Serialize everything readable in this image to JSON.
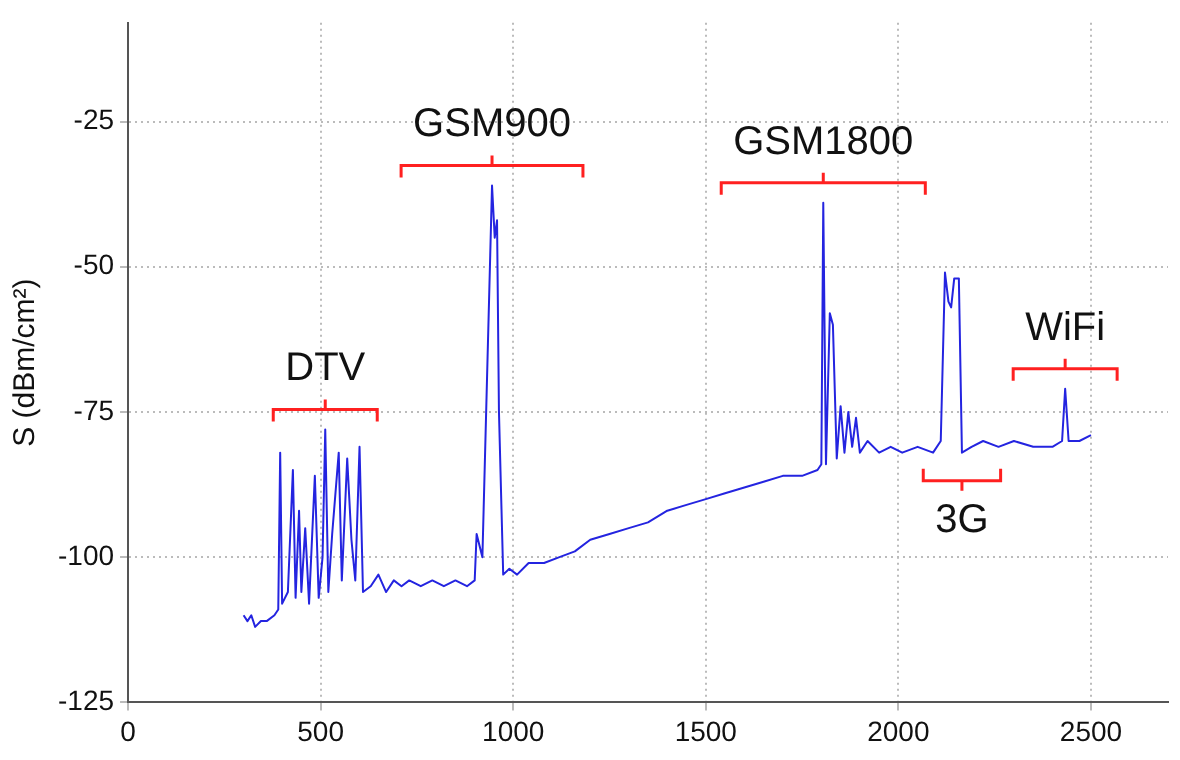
{
  "chart_data": {
    "type": "line",
    "ylabel": "S (dBm/cm²)",
    "xlim": [
      0,
      2700
    ],
    "xticks": [
      0,
      500,
      1000,
      1500,
      2000,
      2500
    ],
    "ylim": [
      -125,
      -8
    ],
    "yticks": [
      -125,
      -100,
      -75,
      -50,
      -25
    ],
    "grid": true,
    "legend": false,
    "marker": "none",
    "x": [
      300,
      310,
      320,
      330,
      345,
      360,
      380,
      390,
      395,
      400,
      415,
      428,
      435,
      444,
      450,
      460,
      470,
      485,
      495,
      505,
      512,
      520,
      530,
      547,
      555,
      569,
      580,
      590,
      601,
      610,
      630,
      650,
      670,
      690,
      710,
      730,
      760,
      790,
      820,
      850,
      880,
      900,
      905,
      920,
      945,
      952,
      958,
      963,
      974,
      990,
      1010,
      1040,
      1080,
      1120,
      1160,
      1200,
      1250,
      1300,
      1350,
      1400,
      1450,
      1500,
      1550,
      1600,
      1650,
      1700,
      1750,
      1790,
      1800,
      1805,
      1812,
      1822,
      1830,
      1840,
      1850,
      1860,
      1870,
      1880,
      1890,
      1900,
      1920,
      1950,
      1980,
      2010,
      2050,
      2090,
      2110,
      2121,
      2130,
      2137,
      2145,
      2157,
      2165,
      2190,
      2220,
      2260,
      2300,
      2350,
      2400,
      2425,
      2433,
      2442,
      2470,
      2500
    ],
    "series": [
      {
        "color": "#2424e0",
        "values": [
          -110,
          -111,
          -110,
          -112,
          -111,
          -111,
          -110,
          -109,
          -82,
          -108,
          -106,
          -85,
          -107,
          -92,
          -106,
          -95,
          -108,
          -86,
          -107,
          -100,
          -78,
          -106,
          -96,
          -82,
          -104,
          -83,
          -97,
          -104,
          -81,
          -106,
          -105,
          -103,
          -106,
          -104,
          -105,
          -104,
          -105,
          -104,
          -105,
          -104,
          -105,
          -104,
          -96,
          -100,
          -36,
          -45,
          -42,
          -75,
          -103,
          -102,
          -103,
          -101,
          -101,
          -100,
          -99,
          -97,
          -96,
          -95,
          -94,
          -92,
          -91,
          -90,
          -89,
          -88,
          -87,
          -86,
          -86,
          -85,
          -84,
          -39,
          -84,
          -58,
          -60,
          -83,
          -74,
          -82,
          -75,
          -81,
          -76,
          -82,
          -80,
          -82,
          -81,
          -82,
          -81,
          -82,
          -80,
          -51,
          -56,
          -57,
          -52,
          -52,
          -82,
          -81,
          -80,
          -81,
          -80,
          -81,
          -81,
          -80,
          -71,
          -80,
          -80,
          -79
        ]
      }
    ],
    "annotations": [
      {
        "text": "DTV",
        "x": 512,
        "y": -78
      },
      {
        "text": "GSM900",
        "x": 945,
        "y": -36
      },
      {
        "text": "GSM1800",
        "x": 1805,
        "y": -39
      },
      {
        "text": "3G",
        "x": 2165,
        "y": -82
      },
      {
        "text": "WiFi",
        "x": 2433,
        "y": -71
      }
    ]
  }
}
